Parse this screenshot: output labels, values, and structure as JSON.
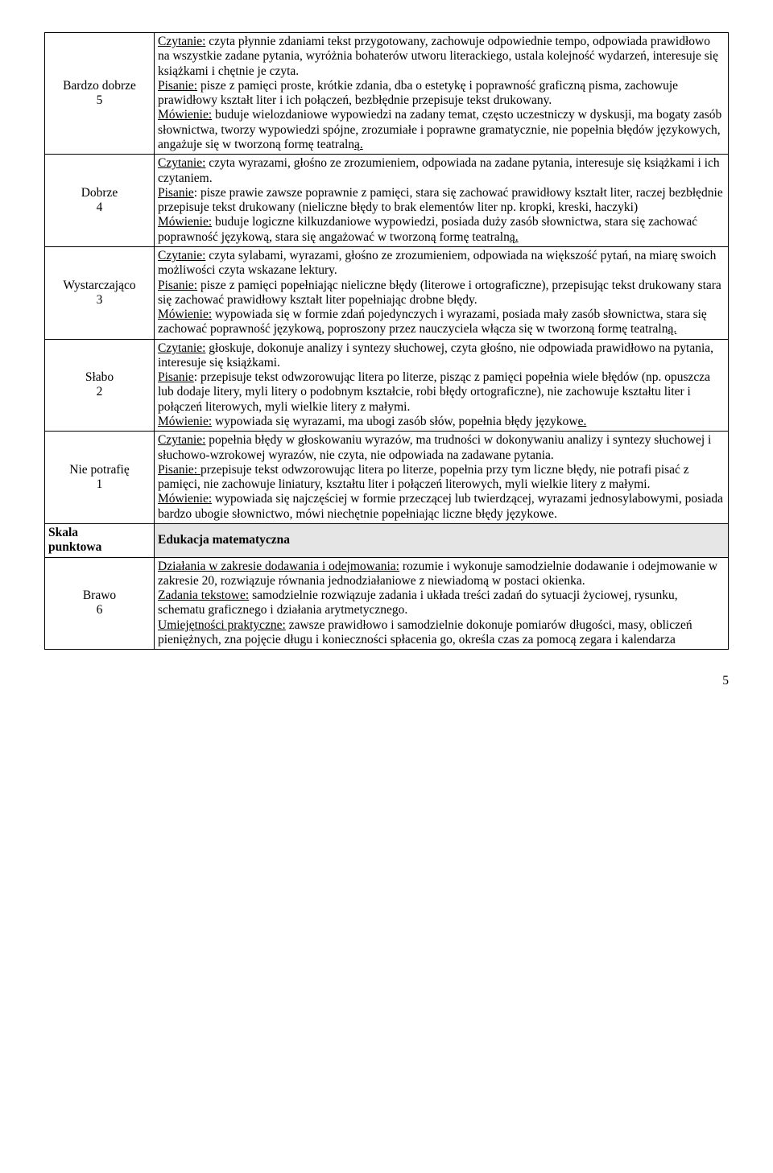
{
  "rows": [
    {
      "label_line1": "Bardzo dobrze",
      "label_line2": "5",
      "content": "<u>Czytanie:</u> czyta płynnie zdaniami tekst przygotowany, zachowuje odpowiednie tempo, odpowiada prawidłowo na wszystkie zadane pytania, wyróżnia bohaterów utworu literackiego, ustala kolejność wydarzeń, interesuje się książkami i chętnie je czyta.<br><u>Pisanie:</u> pisze z pamięci proste, krótkie zdania, dba o estetykę i poprawność graficzną pisma, zachowuje prawidłowy kształt liter i ich połączeń, bezbłędnie przepisuje tekst drukowany.<br><u>Mówienie:</u> buduje wielozdaniowe wypowiedzi na zadany temat, często uczestniczy w dyskusji, ma bogaty zasób słownictwa, tworzy wypowiedzi spójne, zrozumiałe i poprawne gramatycznie, nie popełnia błędów językowych, angażuje się w tworzoną formę teatraln<u>ą.</u>"
    },
    {
      "label_line1": "Dobrze",
      "label_line2": "4",
      "content": "<u>Czytanie:</u> czyta wyrazami, głośno ze zrozumieniem, odpowiada na zadane pytania, interesuje się książkami i ich czytaniem.<br><u>Pisanie</u>: pisze  prawie zawsze poprawnie z pamięci, stara się  zachować prawidłowy kształt liter, raczej bezbłędnie przepisuje tekst drukowany (nieliczne błędy to brak elementów liter np. kropki, kreski, haczyki)<br><u>Mówienie:</u> buduje logiczne kilkuzdaniowe wypowiedzi, posiada duży zasób słownictwa, stara się zachować poprawność językową, stara się angażować w tworzoną formę teatraln<u>ą.</u>"
    },
    {
      "label_line1": "Wystarczająco",
      "label_line2": "3",
      "content": "<u>Czytanie:</u> czyta sylabami, wyrazami, głośno ze zrozumieniem, odpowiada na większość pytań, na miarę swoich możliwości czyta wskazane lektury.<br><u>Pisanie:</u> pisze z pamięci popełniając nieliczne błędy (literowe i ortograficzne), przepisując tekst drukowany stara się zachować prawidłowy kształt liter popełniając drobne błędy.<br><u>Mówienie:</u> wypowiada się w formie zdań pojedynczych i wyrazami, posiada mały zasób słownictwa, stara się zachować poprawność językową, poproszony przez nauczyciela włącza się w tworzoną formę teatraln<u>ą.</u>"
    },
    {
      "label_line1": "Słabo",
      "label_line2": "2",
      "content": "<u>Czytanie:</u> głoskuje, dokonuje analizy i syntezy słuchowej, czyta głośno, nie odpowiada prawidłowo na pytania, interesuje się książkami.<br><u>Pisanie</u>: przepisuje tekst odwzorowując litera po literze, pisząc z pamięci popełnia wiele błędów (np. opuszcza lub dodaje litery, myli litery o podobnym kształcie, robi błędy ortograficzne), nie zachowuje kształtu liter i połączeń literowych, myli wielkie litery z małymi.<br><u>Mówienie:</u> wypowiada się wyrazami, ma ubogi zasób słów, popełnia błędy językow<u>e.</u>"
    },
    {
      "label_line1": "Nie potrafię",
      "label_line2": "1",
      "content": "<u>Czytanie:</u> popełnia błędy w głoskowaniu wyrazów, ma trudności w dokonywaniu analizy i syntezy słuchowej i słuchowo-wzrokowej wyrazów, nie czyta, nie odpowiada na zadawane pytania.<br><u>Pisanie: </u>przepisuje tekst odwzorowując litera po literze, popełnia przy tym liczne błędy, nie potrafi pisać z pamięci, nie zachowuje liniatury, kształtu liter i połączeń literowych, myli wielkie litery z małymi.<br><u>Mówienie:</u> wypowiada się najczęściej w formie przeczącej lub twierdzącej, wyrazami jednosylabowymi, posiada bardzo ubogie słownictwo, mówi niechętnie popełniając liczne błędy językowe."
    }
  ],
  "heading": {
    "label_line1": "Skala",
    "label_line2": "punktowa",
    "content": "Edukacja  matematyczna"
  },
  "row_brawo": {
    "label_line1": "Brawo",
    "label_line2": "6",
    "content": "<u>Działania w zakresie dodawania i odejmowania:</u> rozumie i wykonuje samodzielnie dodawanie i odejmowanie w zakresie 20, rozwiązuje równania jednodziałaniowe z niewiadomą w postaci okienka.<br><u>Zadania tekstowe:</u> samodzielnie rozwiązuje zadania i układa treści zadań do sytuacji życiowej, rysunku, schematu graficznego i działania arytmetycznego.<br><u>Umiejętności praktyczne:</u> zawsze prawidłowo i samodzielnie dokonuje pomiarów długości, masy, obliczeń pieniężnych, zna pojęcie długu i konieczności spłacenia go, określa czas za pomocą zegara i kalendarza"
  },
  "page_number": "5"
}
